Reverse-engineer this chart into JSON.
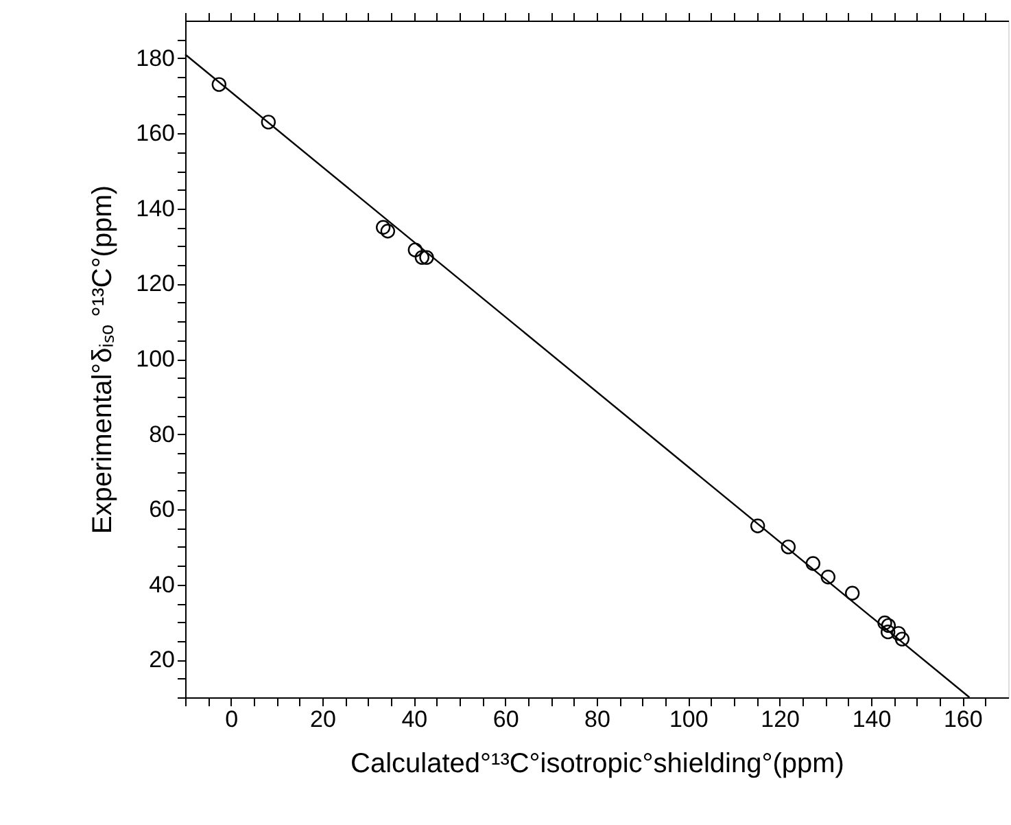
{
  "chart_data": {
    "type": "scatter",
    "xlabel": "Calculated°¹³C°isotropic°shielding°(ppm)",
    "ylabel": "Experimental°δᵢₛₒ °¹³C°(ppm)",
    "xlim": [
      -10,
      170
    ],
    "ylim": [
      10,
      190
    ],
    "xticks": [
      {
        "value": -10,
        "label": null
      },
      {
        "value": -5,
        "label": null
      },
      0,
      {
        "value": 5,
        "label": null
      },
      {
        "value": 10,
        "label": null
      },
      {
        "value": 15,
        "label": null
      },
      20,
      {
        "value": 25,
        "label": null
      },
      {
        "value": 30,
        "label": null
      },
      {
        "value": 35,
        "label": null
      },
      40,
      {
        "value": 45,
        "label": null
      },
      {
        "value": 50,
        "label": null
      },
      {
        "value": 55,
        "label": null
      },
      60,
      {
        "value": 65,
        "label": null
      },
      {
        "value": 70,
        "label": null
      },
      {
        "value": 75,
        "label": null
      },
      80,
      {
        "value": 85,
        "label": null
      },
      {
        "value": 90,
        "label": null
      },
      {
        "value": 95,
        "label": null
      },
      100,
      {
        "value": 105,
        "label": null
      },
      {
        "value": 110,
        "label": null
      },
      {
        "value": 115,
        "label": null
      },
      120,
      {
        "value": 125,
        "label": null
      },
      {
        "value": 130,
        "label": null
      },
      {
        "value": 135,
        "label": null
      },
      140,
      {
        "value": 145,
        "label": null
      },
      {
        "value": 150,
        "label": null
      },
      {
        "value": 155,
        "label": null
      },
      160,
      {
        "value": 165,
        "label": null
      }
    ],
    "yticks": [
      {
        "value": 10,
        "label": null
      },
      {
        "value": 15,
        "label": null
      },
      20,
      {
        "value": 25,
        "label": null
      },
      {
        "value": 30,
        "label": null
      },
      {
        "value": 35,
        "label": null
      },
      40,
      {
        "value": 45,
        "label": null
      },
      {
        "value": 50,
        "label": null
      },
      {
        "value": 55,
        "label": null
      },
      60,
      {
        "value": 65,
        "label": null
      },
      {
        "value": 70,
        "label": null
      },
      {
        "value": 75,
        "label": null
      },
      80,
      {
        "value": 85,
        "label": null
      },
      {
        "value": 90,
        "label": null
      },
      {
        "value": 95,
        "label": null
      },
      100,
      {
        "value": 105,
        "label": null
      },
      {
        "value": 110,
        "label": null
      },
      {
        "value": 115,
        "label": null
      },
      120,
      {
        "value": 125,
        "label": null
      },
      {
        "value": 130,
        "label": null
      },
      {
        "value": 135,
        "label": null
      },
      140,
      {
        "value": 145,
        "label": null
      },
      {
        "value": 150,
        "label": null
      },
      {
        "value": 155,
        "label": null
      },
      160,
      {
        "value": 165,
        "label": null
      },
      {
        "value": 170,
        "label": null
      },
      {
        "value": 175,
        "label": null
      },
      180,
      {
        "value": 185,
        "label": null
      }
    ],
    "grid": false,
    "series": [
      {
        "marker": "circle",
        "color": "#000000",
        "x": [
          -2.6,
          8.2,
          33.3,
          34.3,
          40.3,
          41.8,
          42.8,
          115.2,
          121.9,
          127.3,
          130.6,
          135.9,
          143.0,
          143.8,
          143.7,
          146.0,
          146.8
        ],
        "values": [
          173,
          163,
          135,
          134,
          129,
          127,
          127,
          55.6,
          50,
          45.6,
          42,
          37.7,
          29.8,
          29.1,
          27.4,
          27,
          25.5
        ]
      },
      {
        "type": "line",
        "marker": "none",
        "line_style": "solid",
        "color": "#000000",
        "x": [
          -10,
          161.5
        ],
        "values": [
          181,
          10
        ]
      }
    ]
  }
}
